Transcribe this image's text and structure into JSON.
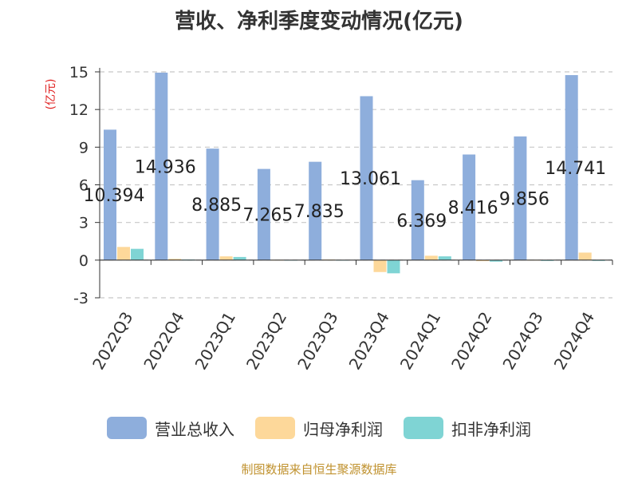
{
  "title": "营收、净利季度变动情况(亿元)",
  "unit": "(亿元)",
  "source": "制图数据来自恒生聚源数据库",
  "colors": {
    "revenue": "#8eaedc",
    "net_profit": "#fdd89a",
    "deducted_net_profit": "#7fd4d4",
    "unit_text": "#e02020",
    "source_text": "#c0922f",
    "grid": "#c8c8c8",
    "axis": "#333333"
  },
  "chart_data": {
    "type": "bar",
    "categories": [
      "2022Q3",
      "2022Q4",
      "2023Q1",
      "2023Q2",
      "2023Q3",
      "2023Q4",
      "2024Q1",
      "2024Q2",
      "2024Q3",
      "2024Q4"
    ],
    "series": [
      {
        "name": "营业总收入",
        "values": [
          10.394,
          14.936,
          8.885,
          7.265,
          7.835,
          13.061,
          6.369,
          8.416,
          9.856,
          14.741
        ]
      },
      {
        "name": "归母净利润",
        "values": [
          1.05,
          0.1,
          0.3,
          0.03,
          0.05,
          -0.95,
          0.35,
          -0.08,
          0.03,
          0.6
        ]
      },
      {
        "name": "扣非净利润",
        "values": [
          0.9,
          0.05,
          0.25,
          0.02,
          0.02,
          -1.05,
          0.3,
          -0.12,
          -0.02,
          0.0
        ]
      }
    ],
    "data_labels": [
      "10.394",
      "14.936",
      "8.885",
      "7.265",
      "7.835",
      "13.061",
      "6.369",
      "8.416",
      "9.856",
      "14.741"
    ],
    "yticks": [
      -3,
      0,
      3,
      6,
      9,
      12,
      15
    ],
    "ylim": [
      -3,
      15
    ],
    "grid": true,
    "legend_position": "bottom",
    "ylabel": "(亿元)"
  }
}
